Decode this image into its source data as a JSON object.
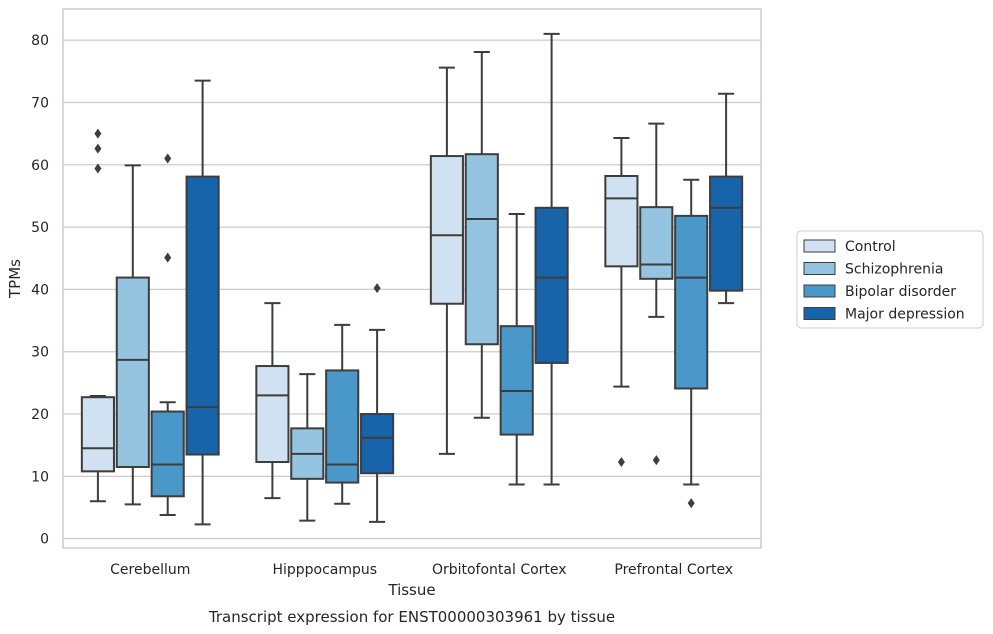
{
  "chart_data": {
    "type": "box",
    "title": "",
    "caption": "Transcript expression for ENST00000303961 by tissue",
    "xlabel": "Tissue",
    "ylabel": "TPMs",
    "ylim": [
      -1.5,
      85
    ],
    "yticks": [
      0,
      10,
      20,
      30,
      40,
      50,
      60,
      70,
      80
    ],
    "grid": "y",
    "legend_position": "right",
    "categories": [
      "Cerebellum",
      "Hipppocampus",
      "Orbitofontal Cortex",
      "Prefrontal Cortex"
    ],
    "series": [
      {
        "name": "Control",
        "color": "#d0e1f2",
        "boxes": [
          {
            "whislo": 6.0,
            "q1": 10.8,
            "med": 14.5,
            "q3": 22.7,
            "whishi": 22.9,
            "fliers": [
              59.4,
              62.6,
              65.0
            ]
          },
          {
            "whislo": 6.5,
            "q1": 12.3,
            "med": 23.0,
            "q3": 27.7,
            "whishi": 37.8,
            "fliers": []
          },
          {
            "whislo": 13.6,
            "q1": 37.7,
            "med": 48.7,
            "q3": 61.4,
            "whishi": 75.6,
            "fliers": []
          },
          {
            "whislo": 24.4,
            "q1": 43.7,
            "med": 54.6,
            "q3": 58.2,
            "whishi": 64.3,
            "fliers": [
              12.3
            ]
          }
        ]
      },
      {
        "name": "Schizophrenia",
        "color": "#94c4df",
        "boxes": [
          {
            "whislo": 5.5,
            "q1": 11.5,
            "med": 28.7,
            "q3": 41.9,
            "whishi": 59.9,
            "fliers": []
          },
          {
            "whislo": 2.9,
            "q1": 9.6,
            "med": 13.6,
            "q3": 17.7,
            "whishi": 26.4,
            "fliers": []
          },
          {
            "whislo": 19.4,
            "q1": 31.2,
            "med": 51.3,
            "q3": 61.7,
            "whishi": 78.1,
            "fliers": []
          },
          {
            "whislo": 35.6,
            "q1": 41.7,
            "med": 44.0,
            "q3": 53.2,
            "whishi": 66.6,
            "fliers": [
              12.6
            ]
          }
        ]
      },
      {
        "name": "Bipolar disorder",
        "color": "#4a98c9",
        "boxes": [
          {
            "whislo": 3.8,
            "q1": 6.8,
            "med": 11.9,
            "q3": 20.4,
            "whishi": 21.9,
            "fliers": [
              45.1,
              61.0
            ]
          },
          {
            "whislo": 5.6,
            "q1": 9.0,
            "med": 11.9,
            "q3": 27.0,
            "whishi": 34.3,
            "fliers": []
          },
          {
            "whislo": 8.7,
            "q1": 16.7,
            "med": 23.7,
            "q3": 34.1,
            "whishi": 52.1,
            "fliers": []
          },
          {
            "whislo": 8.7,
            "q1": 24.1,
            "med": 41.9,
            "q3": 51.8,
            "whishi": 57.6,
            "fliers": [
              5.7
            ]
          }
        ]
      },
      {
        "name": "Major depression",
        "color": "#1764ab",
        "boxes": [
          {
            "whislo": 2.3,
            "q1": 13.5,
            "med": 21.1,
            "q3": 58.1,
            "whishi": 73.5,
            "fliers": []
          },
          {
            "whislo": 2.7,
            "q1": 10.5,
            "med": 16.2,
            "q3": 20.0,
            "whishi": 33.5,
            "fliers": [
              40.2
            ]
          },
          {
            "whislo": 8.7,
            "q1": 28.2,
            "med": 41.9,
            "q3": 53.1,
            "whishi": 81.0,
            "fliers": []
          },
          {
            "whislo": 37.8,
            "q1": 39.8,
            "med": 53.1,
            "q3": 58.1,
            "whishi": 71.4,
            "fliers": []
          }
        ]
      }
    ]
  }
}
